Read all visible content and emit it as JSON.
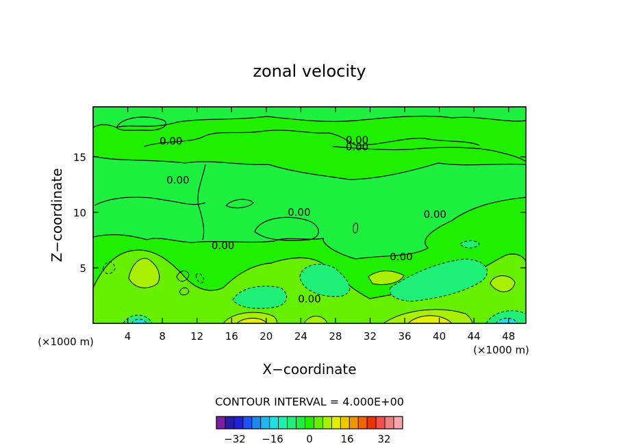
{
  "chart_data": {
    "type": "contour",
    "title": "zonal velocity",
    "xlabel": "X−coordinate",
    "ylabel": "Z−coordinate",
    "x_unit": "(×1000 m)",
    "x_unit_right": "(×1000 m)",
    "xlim": [
      0,
      50
    ],
    "ylim": [
      0,
      19.5
    ],
    "x_ticks": [
      4,
      8,
      12,
      16,
      20,
      24,
      28,
      32,
      36,
      40,
      44,
      48
    ],
    "y_ticks": [
      5,
      10,
      15
    ],
    "contour_interval_text": "CONTOUR INTERVAL = 4.000E+00",
    "contour_labels": [
      {
        "text": "0.00",
        "x": 9.0,
        "z": 16.4
      },
      {
        "text": "0.00",
        "x": 9.8,
        "z": 12.9
      },
      {
        "text": "0.00",
        "x": 23.8,
        "z": 10.0
      },
      {
        "text": "0.00",
        "x": 15.0,
        "z": 7.0
      },
      {
        "text": "0.00",
        "x": 30.5,
        "z": 16.5
      },
      {
        "text": "0.00",
        "x": 30.5,
        "z": 15.9
      },
      {
        "text": "0.00",
        "x": 39.5,
        "z": 9.8
      },
      {
        "text": "0.00",
        "x": 35.6,
        "z": 6.0
      },
      {
        "text": "0.00",
        "x": 25.0,
        "z": 2.2
      }
    ],
    "colorbar": {
      "ticks": [
        "−32",
        "−16",
        "0",
        "16",
        "32"
      ],
      "colors": [
        "#7a1fa2",
        "#2a1aa8",
        "#1f20d8",
        "#1f50f0",
        "#1c88f0",
        "#1cb8f0",
        "#1ee0e0",
        "#1ef0b0",
        "#1ef078",
        "#1ef040",
        "#1ef000",
        "#66f000",
        "#a8f000",
        "#e0f000",
        "#f0c800",
        "#f09600",
        "#f06400",
        "#f03000",
        "#f05050",
        "#f08080",
        "#f0a8a8"
      ]
    }
  }
}
